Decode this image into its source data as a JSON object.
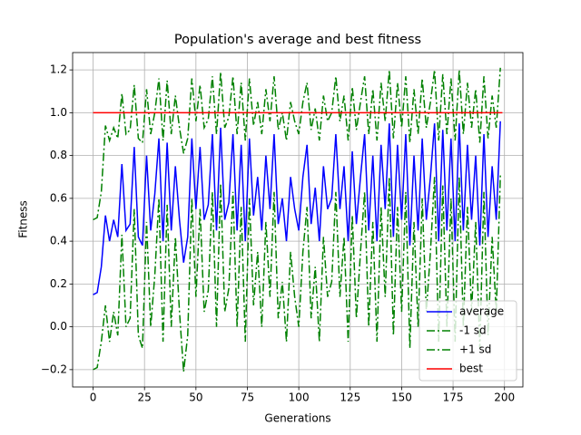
{
  "chart_data": {
    "type": "line",
    "title": "Population's average and best fitness",
    "xlabel": "Generations",
    "ylabel": "Fitness",
    "x": [
      0,
      2,
      4,
      6,
      8,
      10,
      12,
      14,
      16,
      18,
      20,
      22,
      24,
      26,
      28,
      30,
      32,
      34,
      36,
      38,
      40,
      42,
      44,
      46,
      48,
      50,
      52,
      54,
      56,
      58,
      60,
      62,
      64,
      66,
      68,
      70,
      72,
      74,
      76,
      78,
      80,
      82,
      84,
      86,
      88,
      90,
      92,
      94,
      96,
      98,
      100,
      102,
      104,
      106,
      108,
      110,
      112,
      114,
      116,
      118,
      120,
      122,
      124,
      126,
      128,
      130,
      132,
      134,
      136,
      138,
      140,
      142,
      144,
      146,
      148,
      150,
      152,
      154,
      156,
      158,
      160,
      162,
      164,
      166,
      168,
      170,
      172,
      174,
      176,
      178,
      180,
      182,
      184,
      186,
      188,
      190,
      192,
      194,
      196,
      198
    ],
    "series": [
      {
        "name": "average",
        "color": "#0000ff",
        "linestyle": "solid",
        "values": [
          0.15,
          0.16,
          0.28,
          0.52,
          0.4,
          0.5,
          0.42,
          0.76,
          0.45,
          0.48,
          0.84,
          0.42,
          0.38,
          0.8,
          0.45,
          0.62,
          0.88,
          0.4,
          0.86,
          0.45,
          0.75,
          0.5,
          0.3,
          0.42,
          0.88,
          0.55,
          0.84,
          0.5,
          0.57,
          0.9,
          0.45,
          0.93,
          0.5,
          0.58,
          0.9,
          0.45,
          0.85,
          0.4,
          0.88,
          0.52,
          0.7,
          0.45,
          0.8,
          0.55,
          0.9,
          0.48,
          0.6,
          0.4,
          0.7,
          0.55,
          0.45,
          0.7,
          0.85,
          0.48,
          0.65,
          0.4,
          0.75,
          0.55,
          0.6,
          0.9,
          0.55,
          0.75,
          0.4,
          0.82,
          0.48,
          0.7,
          0.9,
          0.45,
          0.8,
          0.4,
          0.85,
          0.55,
          0.95,
          0.42,
          0.85,
          0.5,
          0.9,
          0.38,
          0.8,
          0.45,
          0.88,
          0.5,
          0.7,
          0.95,
          0.4,
          0.92,
          0.45,
          0.88,
          0.4,
          0.95,
          0.45,
          0.85,
          0.5,
          0.8,
          0.38,
          0.9,
          0.42,
          0.75,
          0.5,
          0.96
        ]
      },
      {
        "name": "-1 sd",
        "color": "#008000",
        "linestyle": "dashdot",
        "values": [
          -0.2,
          -0.19,
          -0.07,
          0.1,
          -0.07,
          0.07,
          -0.04,
          0.43,
          0.0,
          0.04,
          0.55,
          -0.04,
          -0.1,
          0.49,
          0.0,
          0.24,
          0.6,
          -0.07,
          0.57,
          0.0,
          0.42,
          0.07,
          -0.21,
          -0.04,
          0.6,
          0.14,
          0.55,
          0.07,
          0.17,
          0.63,
          0.0,
          0.67,
          0.07,
          0.18,
          0.63,
          0.0,
          0.56,
          -0.07,
          0.6,
          0.1,
          0.35,
          0.0,
          0.49,
          0.14,
          0.63,
          0.04,
          0.21,
          -0.07,
          0.35,
          0.14,
          0.0,
          0.35,
          0.56,
          0.04,
          0.28,
          -0.07,
          0.42,
          0.14,
          0.21,
          0.63,
          0.14,
          0.42,
          -0.07,
          0.52,
          0.04,
          0.35,
          0.63,
          0.0,
          0.49,
          -0.07,
          0.56,
          0.14,
          0.7,
          -0.04,
          0.56,
          0.07,
          0.63,
          -0.1,
          0.49,
          0.0,
          0.6,
          0.07,
          0.35,
          0.7,
          -0.07,
          0.66,
          0.0,
          0.6,
          -0.07,
          0.7,
          0.0,
          0.56,
          0.07,
          0.49,
          -0.1,
          0.63,
          -0.04,
          0.42,
          0.07,
          0.71
        ]
      },
      {
        "name": "+1 sd",
        "color": "#008000",
        "linestyle": "dashdot",
        "values": [
          0.5,
          0.51,
          0.63,
          0.94,
          0.87,
          0.93,
          0.88,
          1.09,
          0.9,
          0.92,
          1.13,
          0.88,
          0.86,
          1.11,
          0.9,
          1.0,
          1.16,
          0.87,
          1.15,
          0.9,
          1.08,
          0.93,
          0.81,
          0.88,
          1.16,
          0.96,
          1.13,
          0.93,
          0.97,
          1.17,
          0.9,
          1.19,
          0.93,
          0.98,
          1.17,
          0.9,
          1.14,
          0.87,
          1.16,
          0.94,
          1.05,
          0.9,
          1.11,
          0.96,
          1.17,
          0.92,
          1.0,
          0.87,
          1.05,
          0.96,
          0.9,
          1.05,
          1.14,
          0.92,
          1.02,
          0.87,
          1.08,
          0.96,
          1.0,
          1.17,
          0.96,
          1.08,
          0.87,
          1.12,
          0.92,
          1.05,
          1.17,
          0.9,
          1.11,
          0.87,
          1.14,
          0.96,
          1.2,
          0.88,
          1.14,
          0.93,
          1.17,
          0.86,
          1.11,
          0.9,
          1.16,
          0.93,
          1.05,
          1.2,
          0.87,
          1.18,
          0.9,
          1.16,
          0.87,
          1.2,
          0.9,
          1.14,
          0.93,
          1.11,
          0.86,
          1.17,
          0.88,
          1.08,
          0.93,
          1.21
        ]
      },
      {
        "name": "best",
        "color": "#ff0000",
        "linestyle": "solid",
        "x": [
          0,
          199
        ],
        "values": [
          1,
          1
        ]
      }
    ],
    "xlim": [
      -9.95,
      208.95
    ],
    "ylim": [
      -0.281,
      1.281
    ],
    "xticks": [
      0,
      25,
      50,
      75,
      100,
      125,
      150,
      175,
      200
    ],
    "yticks": [
      {
        "value": -0.2,
        "label": "−0.2"
      },
      {
        "value": 0,
        "label": "0.0"
      },
      {
        "value": 0.2,
        "label": "0.2"
      },
      {
        "value": 0.4,
        "label": "0.4"
      },
      {
        "value": 0.6,
        "label": "0.6"
      },
      {
        "value": 0.8,
        "label": "0.8"
      },
      {
        "value": 1.0,
        "label": "1.0"
      },
      {
        "value": 1.2,
        "label": "1.2"
      }
    ],
    "grid": true,
    "legend": "lower right"
  }
}
